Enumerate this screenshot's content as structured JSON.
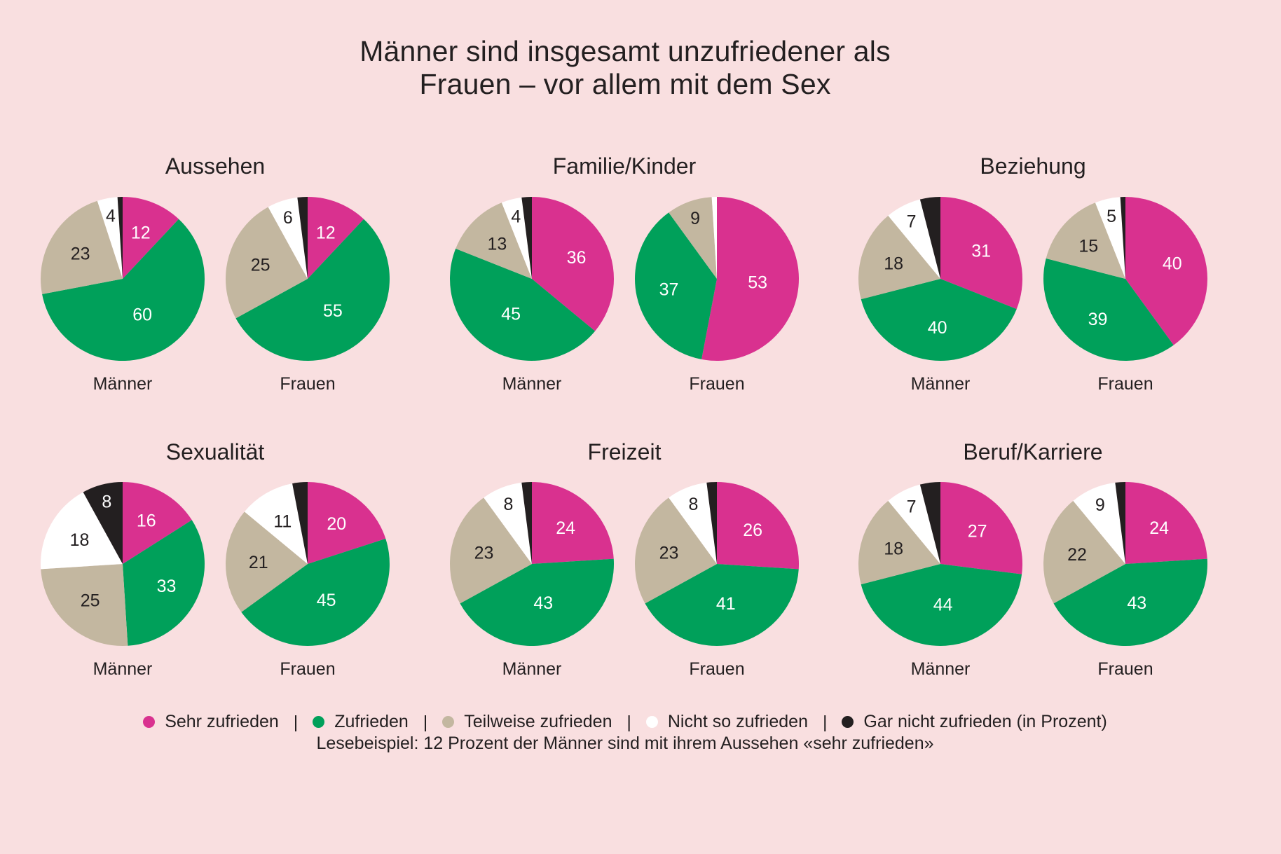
{
  "title_lines": [
    "Männer sind insgesamt unzufriedener als",
    "Frauen – vor allem mit dem Sex"
  ],
  "colors": {
    "sehr_zufrieden": "#D9318F",
    "zufrieden": "#00A05A",
    "teilweise_zufrieden": "#C3B7A0",
    "nicht_so_zufrieden": "#FFFFFF",
    "gar_nicht_zufrieden": "#231F20",
    "background": "#F9DFE0",
    "text": "#231F20"
  },
  "legend": {
    "items": [
      {
        "key": "sehr_zufrieden",
        "label": "Sehr zufrieden"
      },
      {
        "key": "zufrieden",
        "label": "Zufrieden"
      },
      {
        "key": "teilweise_zufrieden",
        "label": "Teilweise zufrieden"
      },
      {
        "key": "nicht_so_zufrieden",
        "label": "Nicht so zufrieden"
      },
      {
        "key": "gar_nicht_zufrieden",
        "label": "Gar nicht zufrieden (in Prozent)"
      }
    ],
    "separator": "|",
    "reading_example": "Lesebeispiel: 12 Prozent der Männer sind mit ihrem Aussehen «sehr zufrieden»"
  },
  "chart_data": {
    "type": "pie",
    "title": "Männer sind insgesamt unzufriedener als Frauen – vor allem mit dem Sex",
    "unit": "Prozent",
    "categories": [
      "Sehr zufrieden",
      "Zufrieden",
      "Teilweise zufrieden",
      "Nicht so zufrieden",
      "Gar nicht zufrieden"
    ],
    "legend_position": "bottom",
    "panels": [
      {
        "title": "Aussehen",
        "groups": [
          {
            "name": "Männer",
            "values": [
              12,
              60,
              23,
              4,
              1
            ],
            "labels": [
              "12",
              "60",
              "23",
              "4",
              ""
            ]
          },
          {
            "name": "Frauen",
            "values": [
              12,
              55,
              25,
              6,
              2
            ],
            "labels": [
              "12",
              "55",
              "25",
              "6",
              ""
            ]
          }
        ]
      },
      {
        "title": "Familie/Kinder",
        "groups": [
          {
            "name": "Männer",
            "values": [
              36,
              45,
              13,
              4,
              2
            ],
            "labels": [
              "36",
              "45",
              "13",
              "4",
              ""
            ]
          },
          {
            "name": "Frauen",
            "values": [
              53,
              37,
              9,
              1,
              0
            ],
            "labels": [
              "53",
              "37",
              "9",
              "",
              ""
            ]
          }
        ]
      },
      {
        "title": "Beziehung",
        "groups": [
          {
            "name": "Männer",
            "values": [
              31,
              40,
              18,
              7,
              4
            ],
            "labels": [
              "31",
              "40",
              "18",
              "7",
              ""
            ]
          },
          {
            "name": "Frauen",
            "values": [
              40,
              39,
              15,
              5,
              1
            ],
            "labels": [
              "40",
              "39",
              "15",
              "5",
              ""
            ]
          }
        ]
      },
      {
        "title": "Sexualität",
        "groups": [
          {
            "name": "Männer",
            "values": [
              16,
              33,
              25,
              18,
              8
            ],
            "labels": [
              "16",
              "33",
              "25",
              "18",
              "8"
            ]
          },
          {
            "name": "Frauen",
            "values": [
              20,
              45,
              21,
              11,
              3
            ],
            "labels": [
              "20",
              "45",
              "21",
              "11",
              ""
            ]
          }
        ]
      },
      {
        "title": "Freizeit",
        "groups": [
          {
            "name": "Männer",
            "values": [
              24,
              43,
              23,
              8,
              2
            ],
            "labels": [
              "24",
              "43",
              "23",
              "8",
              ""
            ]
          },
          {
            "name": "Frauen",
            "values": [
              26,
              41,
              23,
              8,
              2
            ],
            "labels": [
              "26",
              "41",
              "23",
              "8",
              ""
            ]
          }
        ]
      },
      {
        "title": "Beruf/Karriere",
        "groups": [
          {
            "name": "Männer",
            "values": [
              27,
              44,
              18,
              7,
              4
            ],
            "labels": [
              "27",
              "44",
              "18",
              "7",
              ""
            ]
          },
          {
            "name": "Frauen",
            "values": [
              24,
              43,
              22,
              9,
              2
            ],
            "labels": [
              "24",
              "43",
              "22",
              "9",
              ""
            ]
          }
        ]
      }
    ]
  }
}
